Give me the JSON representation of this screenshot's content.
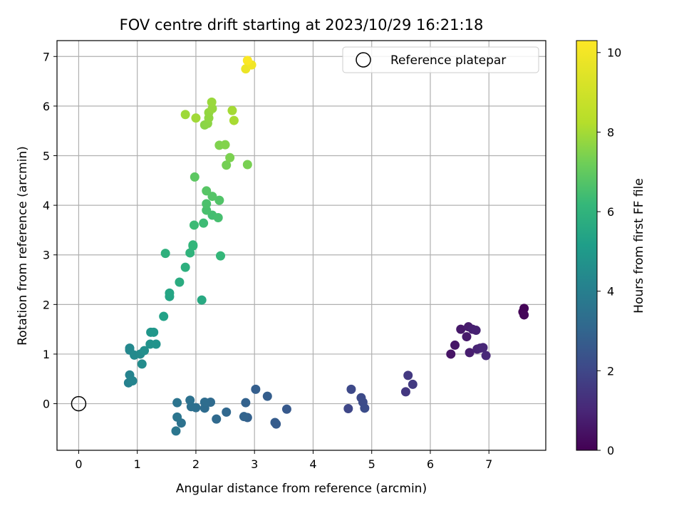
{
  "chart_data": {
    "type": "scatter",
    "title": "FOV centre drift starting at 2023/10/29 16:21:18",
    "xlabel": "Angular distance from reference (arcmin)",
    "ylabel": "Rotation from reference (arcmin)",
    "xlim": [
      -0.37,
      7.97
    ],
    "ylim": [
      -0.94,
      7.32
    ],
    "xticks": [
      0,
      1,
      2,
      3,
      4,
      5,
      6,
      7
    ],
    "yticks": [
      0,
      1,
      2,
      3,
      4,
      5,
      6,
      7
    ],
    "grid": true,
    "legend": {
      "position": "top-right",
      "entries": [
        "Reference platepar"
      ]
    },
    "reference_point": {
      "x": 0,
      "y": 0
    },
    "colorbar": {
      "label": "Hours from first FF file",
      "range": [
        0,
        10.3
      ],
      "ticks": [
        0,
        2,
        4,
        6,
        8,
        10
      ],
      "colormap": "viridis"
    },
    "series": [
      {
        "points": [
          {
            "x": 7.58,
            "y": 1.85,
            "c": 0.05
          },
          {
            "x": 7.6,
            "y": 1.92,
            "c": 0.1
          },
          {
            "x": 7.6,
            "y": 1.79,
            "c": 0.15
          },
          {
            "x": 6.35,
            "y": 1.0,
            "c": 0.5
          },
          {
            "x": 6.42,
            "y": 1.18,
            "c": 0.55
          },
          {
            "x": 6.52,
            "y": 1.5,
            "c": 0.6
          },
          {
            "x": 6.62,
            "y": 1.35,
            "c": 0.65
          },
          {
            "x": 6.65,
            "y": 1.55,
            "c": 0.7
          },
          {
            "x": 6.67,
            "y": 1.03,
            "c": 0.75
          },
          {
            "x": 6.72,
            "y": 1.5,
            "c": 0.8
          },
          {
            "x": 6.78,
            "y": 1.48,
            "c": 0.85
          },
          {
            "x": 6.8,
            "y": 1.1,
            "c": 0.9
          },
          {
            "x": 6.85,
            "y": 1.12,
            "c": 0.95
          },
          {
            "x": 6.9,
            "y": 1.13,
            "c": 1.0
          },
          {
            "x": 6.95,
            "y": 0.97,
            "c": 1.05
          },
          {
            "x": 5.58,
            "y": 0.24,
            "c": 1.5
          },
          {
            "x": 5.62,
            "y": 0.57,
            "c": 1.55
          },
          {
            "x": 5.7,
            "y": 0.39,
            "c": 1.6
          },
          {
            "x": 4.6,
            "y": -0.1,
            "c": 2.0
          },
          {
            "x": 4.65,
            "y": 0.29,
            "c": 2.05
          },
          {
            "x": 4.82,
            "y": 0.12,
            "c": 2.1
          },
          {
            "x": 4.85,
            "y": 0.03,
            "c": 2.15
          },
          {
            "x": 4.88,
            "y": -0.09,
            "c": 2.2
          },
          {
            "x": 3.55,
            "y": -0.11,
            "c": 2.6
          },
          {
            "x": 3.37,
            "y": -0.41,
            "c": 2.65
          },
          {
            "x": 3.35,
            "y": -0.38,
            "c": 2.7
          },
          {
            "x": 3.22,
            "y": 0.15,
            "c": 2.75
          },
          {
            "x": 3.02,
            "y": 0.29,
            "c": 2.8
          },
          {
            "x": 2.88,
            "y": -0.28,
            "c": 2.85
          },
          {
            "x": 2.85,
            "y": 0.02,
            "c": 2.9
          },
          {
            "x": 2.82,
            "y": -0.26,
            "c": 2.95
          },
          {
            "x": 2.52,
            "y": -0.17,
            "c": 3.1
          },
          {
            "x": 2.35,
            "y": -0.31,
            "c": 3.15
          },
          {
            "x": 2.25,
            "y": 0.03,
            "c": 3.2
          },
          {
            "x": 2.15,
            "y": -0.09,
            "c": 3.25
          },
          {
            "x": 2.15,
            "y": 0.03,
            "c": 3.3
          },
          {
            "x": 2.0,
            "y": -0.08,
            "c": 3.35
          },
          {
            "x": 1.92,
            "y": -0.06,
            "c": 3.4
          },
          {
            "x": 1.9,
            "y": 0.07,
            "c": 3.45
          },
          {
            "x": 1.75,
            "y": -0.39,
            "c": 3.5
          },
          {
            "x": 1.68,
            "y": 0.02,
            "c": 3.55
          },
          {
            "x": 1.68,
            "y": -0.27,
            "c": 3.6
          },
          {
            "x": 1.66,
            "y": -0.55,
            "c": 3.65
          },
          {
            "x": 0.85,
            "y": 0.42,
            "c": 4.1
          },
          {
            "x": 0.87,
            "y": 0.58,
            "c": 4.15
          },
          {
            "x": 0.92,
            "y": 0.46,
            "c": 4.2
          },
          {
            "x": 0.87,
            "y": 1.08,
            "c": 4.3
          },
          {
            "x": 0.87,
            "y": 1.12,
            "c": 4.35
          },
          {
            "x": 0.95,
            "y": 0.98,
            "c": 4.4
          },
          {
            "x": 1.05,
            "y": 1.0,
            "c": 4.45
          },
          {
            "x": 1.08,
            "y": 0.8,
            "c": 4.5
          },
          {
            "x": 1.12,
            "y": 1.07,
            "c": 4.6
          },
          {
            "x": 1.22,
            "y": 1.2,
            "c": 4.7
          },
          {
            "x": 1.32,
            "y": 1.2,
            "c": 4.75
          },
          {
            "x": 1.23,
            "y": 1.44,
            "c": 4.85
          },
          {
            "x": 1.28,
            "y": 1.44,
            "c": 4.9
          },
          {
            "x": 1.45,
            "y": 1.76,
            "c": 5.3
          },
          {
            "x": 1.55,
            "y": 2.16,
            "c": 5.4
          },
          {
            "x": 1.55,
            "y": 2.23,
            "c": 5.45
          },
          {
            "x": 1.48,
            "y": 3.03,
            "c": 5.9
          },
          {
            "x": 2.1,
            "y": 2.09,
            "c": 5.6
          },
          {
            "x": 1.72,
            "y": 2.45,
            "c": 5.7
          },
          {
            "x": 1.82,
            "y": 2.75,
            "c": 5.85
          },
          {
            "x": 1.9,
            "y": 3.04,
            "c": 6.0
          },
          {
            "x": 1.95,
            "y": 3.18,
            "c": 6.05
          },
          {
            "x": 1.95,
            "y": 3.2,
            "c": 6.1
          },
          {
            "x": 2.42,
            "y": 2.98,
            "c": 6.15
          },
          {
            "x": 1.97,
            "y": 3.6,
            "c": 6.3
          },
          {
            "x": 2.13,
            "y": 3.64,
            "c": 6.35
          },
          {
            "x": 2.28,
            "y": 3.8,
            "c": 6.45
          },
          {
            "x": 2.38,
            "y": 3.75,
            "c": 6.5
          },
          {
            "x": 2.18,
            "y": 3.9,
            "c": 6.55
          },
          {
            "x": 2.18,
            "y": 4.03,
            "c": 6.6
          },
          {
            "x": 2.4,
            "y": 4.1,
            "c": 6.7
          },
          {
            "x": 2.28,
            "y": 4.18,
            "c": 6.75
          },
          {
            "x": 2.18,
            "y": 4.29,
            "c": 6.8
          },
          {
            "x": 1.98,
            "y": 4.57,
            "c": 6.9
          },
          {
            "x": 2.52,
            "y": 4.81,
            "c": 7.3
          },
          {
            "x": 2.88,
            "y": 4.82,
            "c": 7.35
          },
          {
            "x": 2.58,
            "y": 4.96,
            "c": 7.4
          },
          {
            "x": 2.4,
            "y": 5.21,
            "c": 7.45
          },
          {
            "x": 2.5,
            "y": 5.22,
            "c": 7.5
          },
          {
            "x": 2.15,
            "y": 5.62,
            "c": 7.6
          },
          {
            "x": 2.2,
            "y": 5.65,
            "c": 7.65
          },
          {
            "x": 2.22,
            "y": 5.76,
            "c": 7.7
          },
          {
            "x": 2.22,
            "y": 5.87,
            "c": 7.75
          },
          {
            "x": 2.28,
            "y": 5.95,
            "c": 7.8
          },
          {
            "x": 2.27,
            "y": 6.08,
            "c": 7.85
          },
          {
            "x": 1.82,
            "y": 5.83,
            "c": 7.9
          },
          {
            "x": 2.0,
            "y": 5.76,
            "c": 7.95
          },
          {
            "x": 2.62,
            "y": 5.91,
            "c": 8.0
          },
          {
            "x": 2.65,
            "y": 5.71,
            "c": 8.05
          },
          {
            "x": 2.85,
            "y": 6.75,
            "c": 9.8
          },
          {
            "x": 2.95,
            "y": 6.83,
            "c": 9.95
          },
          {
            "x": 2.88,
            "y": 6.92,
            "c": 10.2
          }
        ]
      }
    ]
  }
}
